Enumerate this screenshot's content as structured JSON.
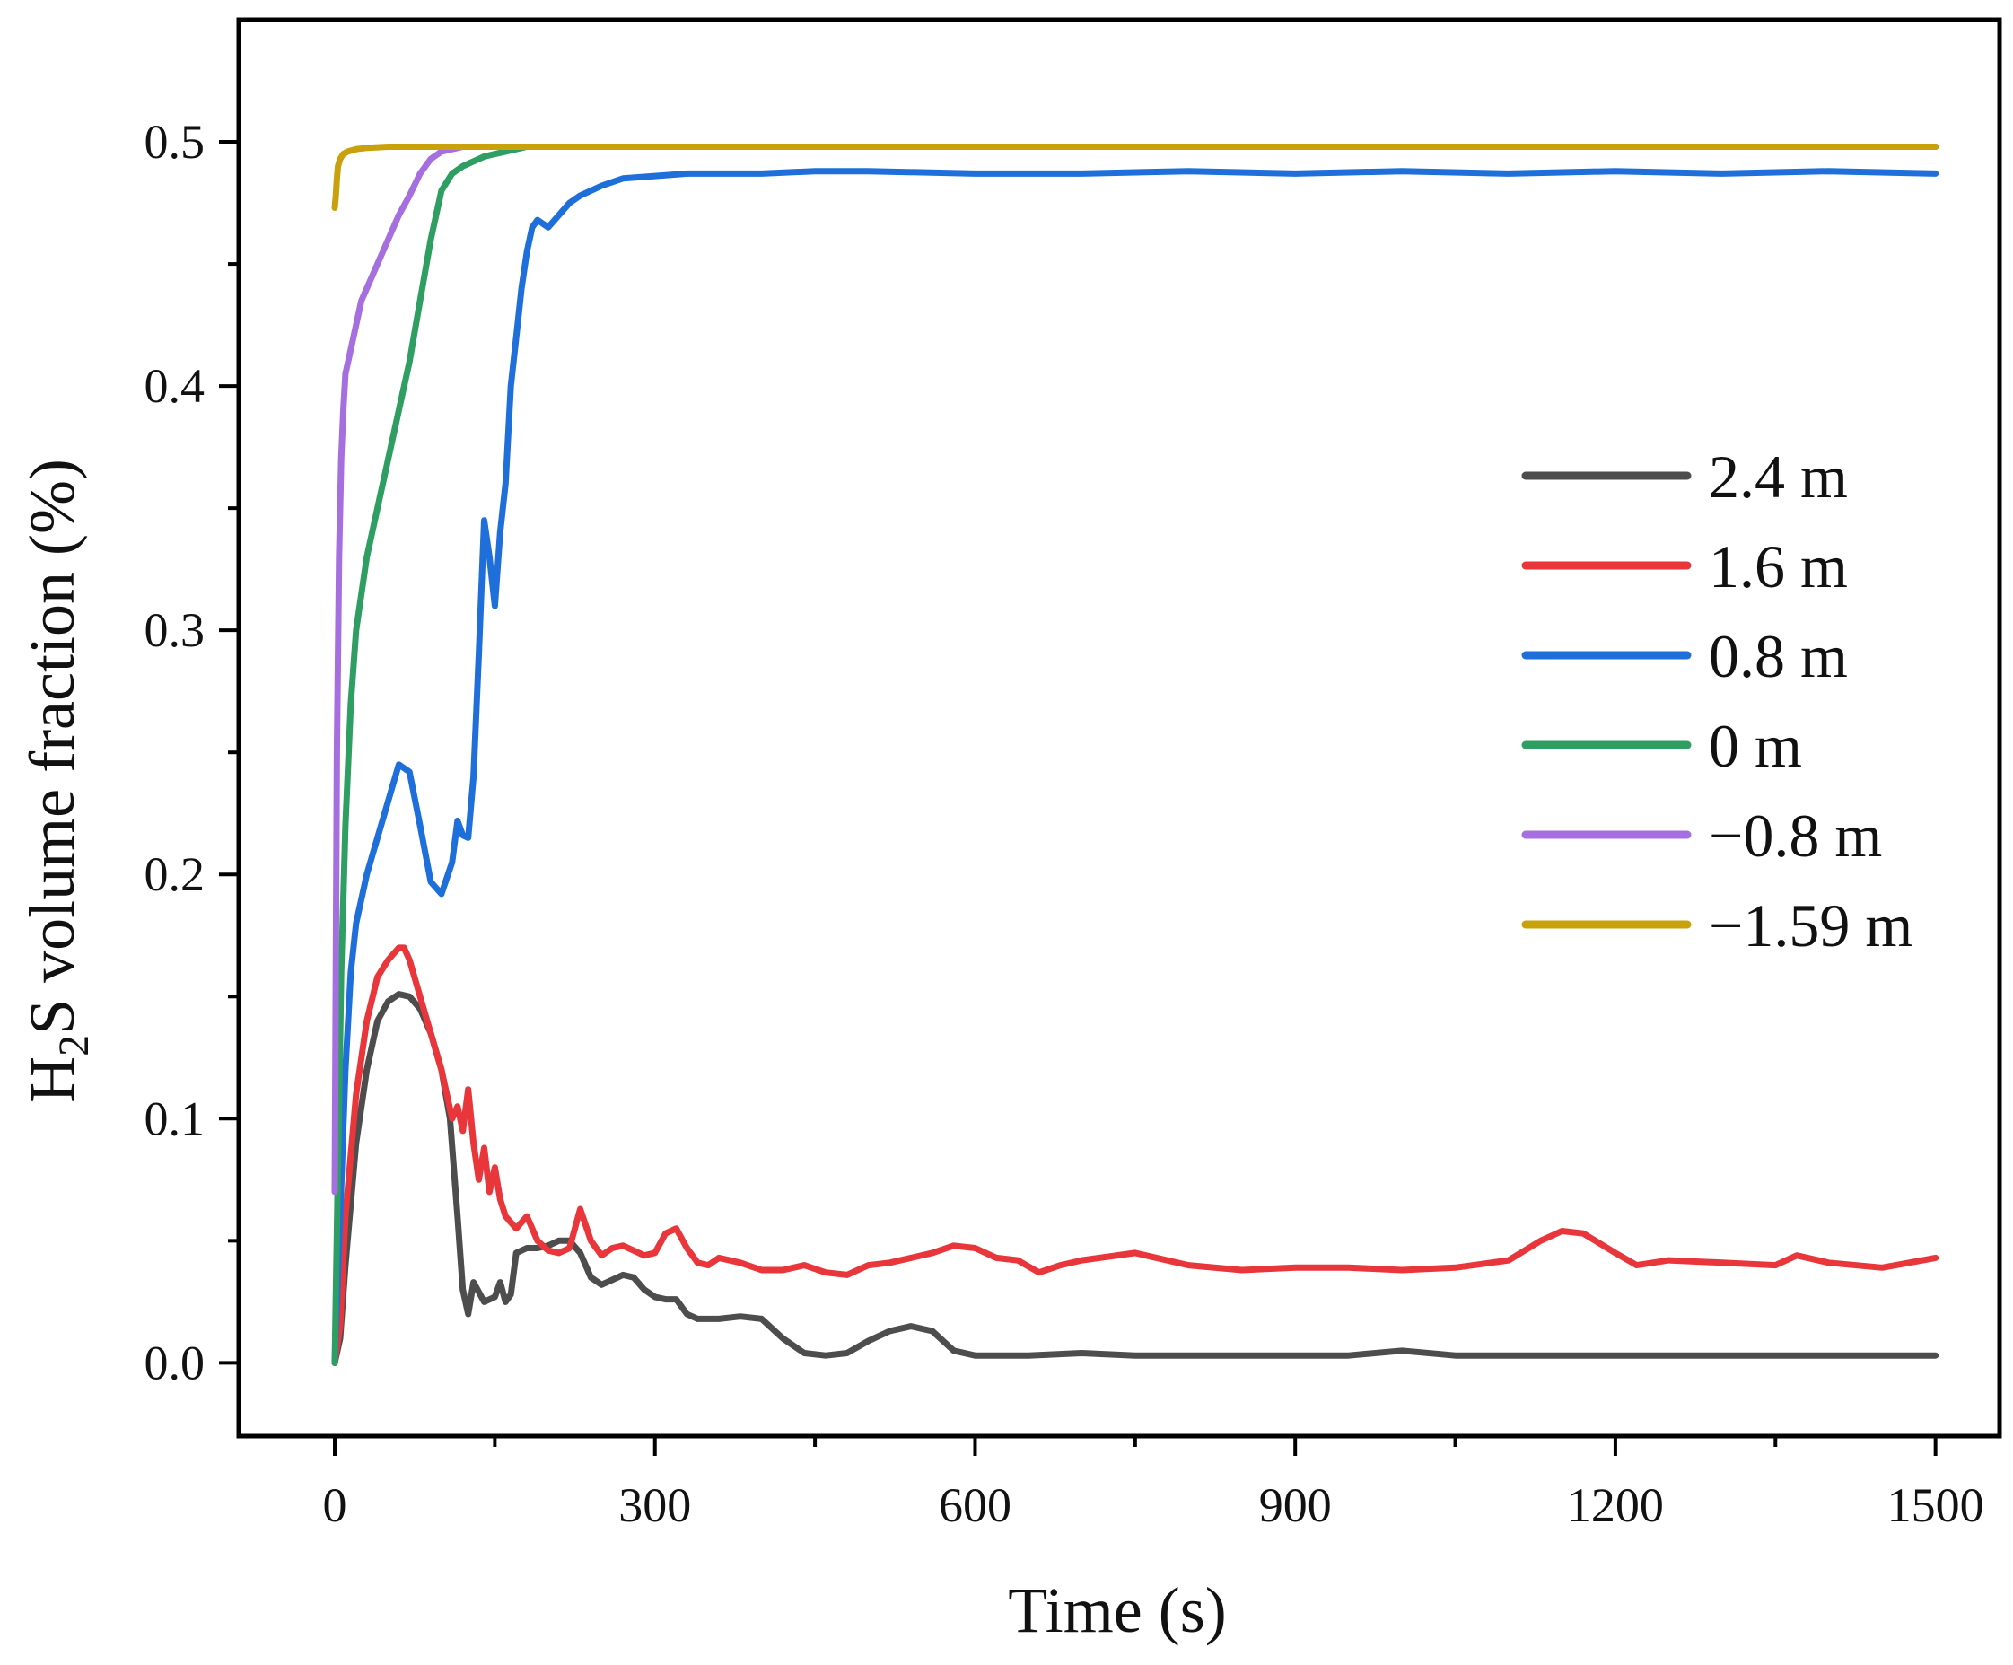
{
  "chart_data": {
    "type": "line",
    "title": "",
    "xlabel": "Time (s)",
    "ylabel": {
      "prefix": "H",
      "subscript": "2",
      "suffix": "S volume fraction (%)"
    },
    "xlim": [
      -90,
      1560
    ],
    "ylim": [
      -0.03,
      0.55
    ],
    "xticks": [
      0,
      300,
      600,
      900,
      1200,
      1500
    ],
    "xtick_labels": [
      "0",
      "300",
      "600",
      "900",
      "1200",
      "1500"
    ],
    "xminor": [
      150,
      450,
      750,
      1050,
      1350
    ],
    "yticks": [
      0.0,
      0.1,
      0.2,
      0.3,
      0.4,
      0.5
    ],
    "ytick_labels": [
      "0.0",
      "0.1",
      "0.2",
      "0.3",
      "0.4",
      "0.5"
    ],
    "yminor": [
      0.05,
      0.15,
      0.25,
      0.35,
      0.45
    ],
    "grid": false,
    "legend_position": "center-right",
    "series": [
      {
        "name": "2.4 m",
        "color": "#4d4d4d",
        "x": [
          0,
          5,
          10,
          20,
          30,
          40,
          50,
          60,
          70,
          80,
          90,
          100,
          108,
          115,
          120,
          125,
          130,
          140,
          150,
          155,
          160,
          165,
          170,
          180,
          190,
          200,
          210,
          220,
          230,
          240,
          250,
          260,
          270,
          280,
          290,
          300,
          310,
          320,
          330,
          340,
          350,
          360,
          380,
          400,
          420,
          440,
          460,
          480,
          500,
          520,
          540,
          560,
          580,
          600,
          650,
          700,
          750,
          800,
          850,
          900,
          950,
          1000,
          1050,
          1100,
          1150,
          1200,
          1250,
          1300,
          1350,
          1400,
          1450,
          1500
        ],
        "y": [
          0.0,
          0.01,
          0.04,
          0.09,
          0.12,
          0.14,
          0.148,
          0.151,
          0.15,
          0.145,
          0.135,
          0.12,
          0.1,
          0.06,
          0.03,
          0.02,
          0.033,
          0.025,
          0.027,
          0.033,
          0.025,
          0.028,
          0.045,
          0.047,
          0.047,
          0.048,
          0.05,
          0.05,
          0.045,
          0.035,
          0.032,
          0.034,
          0.036,
          0.035,
          0.03,
          0.027,
          0.026,
          0.026,
          0.02,
          0.018,
          0.018,
          0.018,
          0.019,
          0.018,
          0.01,
          0.004,
          0.003,
          0.004,
          0.009,
          0.013,
          0.015,
          0.013,
          0.005,
          0.003,
          0.003,
          0.004,
          0.003,
          0.003,
          0.003,
          0.003,
          0.003,
          0.005,
          0.003,
          0.003,
          0.003,
          0.003,
          0.003,
          0.003,
          0.003,
          0.003,
          0.003,
          0.003
        ]
      },
      {
        "name": "1.6 m",
        "color": "#e8363b",
        "x": [
          0,
          5,
          10,
          20,
          30,
          40,
          50,
          60,
          65,
          70,
          80,
          90,
          100,
          110,
          115,
          120,
          125,
          130,
          135,
          140,
          145,
          150,
          155,
          160,
          170,
          180,
          190,
          200,
          210,
          220,
          230,
          240,
          250,
          260,
          270,
          280,
          290,
          300,
          310,
          320,
          330,
          340,
          350,
          360,
          380,
          400,
          420,
          440,
          460,
          480,
          500,
          520,
          540,
          560,
          580,
          600,
          620,
          640,
          660,
          680,
          700,
          750,
          800,
          850,
          900,
          950,
          1000,
          1050,
          1100,
          1130,
          1150,
          1170,
          1200,
          1220,
          1250,
          1300,
          1350,
          1370,
          1400,
          1450,
          1500
        ],
        "y": [
          0.0,
          0.015,
          0.06,
          0.11,
          0.14,
          0.158,
          0.165,
          0.17,
          0.17,
          0.165,
          0.15,
          0.135,
          0.12,
          0.1,
          0.105,
          0.095,
          0.112,
          0.09,
          0.075,
          0.088,
          0.07,
          0.08,
          0.067,
          0.06,
          0.055,
          0.06,
          0.05,
          0.046,
          0.045,
          0.047,
          0.063,
          0.05,
          0.044,
          0.047,
          0.048,
          0.046,
          0.044,
          0.045,
          0.053,
          0.055,
          0.047,
          0.041,
          0.04,
          0.043,
          0.041,
          0.038,
          0.038,
          0.04,
          0.037,
          0.036,
          0.04,
          0.041,
          0.043,
          0.045,
          0.048,
          0.047,
          0.043,
          0.042,
          0.037,
          0.04,
          0.042,
          0.045,
          0.04,
          0.038,
          0.039,
          0.039,
          0.038,
          0.039,
          0.042,
          0.05,
          0.054,
          0.053,
          0.045,
          0.04,
          0.042,
          0.041,
          0.04,
          0.044,
          0.041,
          0.039,
          0.043
        ]
      },
      {
        "name": "0.8 m",
        "color": "#1f6fdb",
        "x": [
          0,
          5,
          10,
          15,
          20,
          30,
          40,
          50,
          60,
          70,
          80,
          90,
          100,
          110,
          115,
          120,
          125,
          130,
          135,
          140,
          145,
          150,
          155,
          160,
          165,
          170,
          175,
          180,
          185,
          190,
          200,
          210,
          220,
          230,
          250,
          270,
          300,
          330,
          360,
          400,
          450,
          500,
          600,
          700,
          800,
          900,
          1000,
          1100,
          1200,
          1300,
          1400,
          1500
        ],
        "y": [
          0.0,
          0.06,
          0.12,
          0.16,
          0.18,
          0.2,
          0.215,
          0.23,
          0.245,
          0.242,
          0.22,
          0.197,
          0.192,
          0.205,
          0.222,
          0.216,
          0.215,
          0.24,
          0.29,
          0.345,
          0.33,
          0.31,
          0.34,
          0.36,
          0.4,
          0.42,
          0.44,
          0.455,
          0.465,
          0.468,
          0.465,
          0.47,
          0.475,
          0.478,
          0.482,
          0.485,
          0.486,
          0.487,
          0.487,
          0.487,
          0.488,
          0.488,
          0.487,
          0.487,
          0.488,
          0.487,
          0.488,
          0.487,
          0.488,
          0.487,
          0.488,
          0.487
        ]
      },
      {
        "name": "0 m",
        "color": "#2e9e62",
        "x": [
          0,
          3,
          6,
          10,
          15,
          20,
          30,
          40,
          50,
          60,
          70,
          80,
          90,
          100,
          110,
          120,
          130,
          140,
          150,
          160,
          170,
          180,
          200,
          250,
          300,
          400,
          600,
          800,
          1000,
          1200,
          1400,
          1500
        ],
        "y": [
          0.0,
          0.08,
          0.16,
          0.22,
          0.27,
          0.3,
          0.33,
          0.35,
          0.37,
          0.39,
          0.41,
          0.435,
          0.46,
          0.48,
          0.487,
          0.49,
          0.492,
          0.494,
          0.495,
          0.496,
          0.497,
          0.498,
          0.498,
          0.498,
          0.498,
          0.498,
          0.498,
          0.498,
          0.498,
          0.498,
          0.498,
          0.498
        ]
      },
      {
        "name": "−0.8 m",
        "color": "#a66fe0",
        "x": [
          0,
          2,
          4,
          6,
          8,
          10,
          15,
          20,
          25,
          30,
          40,
          50,
          60,
          70,
          80,
          90,
          100,
          110,
          120,
          130,
          150,
          200,
          300,
          400,
          600,
          800,
          1000,
          1200,
          1400,
          1500
        ],
        "y": [
          0.07,
          0.25,
          0.33,
          0.37,
          0.39,
          0.405,
          0.415,
          0.425,
          0.435,
          0.44,
          0.45,
          0.46,
          0.47,
          0.478,
          0.487,
          0.493,
          0.496,
          0.497,
          0.498,
          0.498,
          0.498,
          0.498,
          0.498,
          0.498,
          0.498,
          0.498,
          0.498,
          0.498,
          0.498,
          0.498
        ]
      },
      {
        "name": "−1.59 m",
        "color": "#c9a10a",
        "x": [
          0,
          1,
          2,
          3,
          5,
          8,
          12,
          20,
          30,
          50,
          80,
          120,
          200,
          300,
          500,
          700,
          900,
          1100,
          1300,
          1500
        ],
        "y": [
          0.473,
          0.478,
          0.485,
          0.49,
          0.493,
          0.495,
          0.496,
          0.497,
          0.4975,
          0.498,
          0.498,
          0.498,
          0.498,
          0.498,
          0.498,
          0.498,
          0.498,
          0.498,
          0.498,
          0.498
        ]
      }
    ]
  }
}
